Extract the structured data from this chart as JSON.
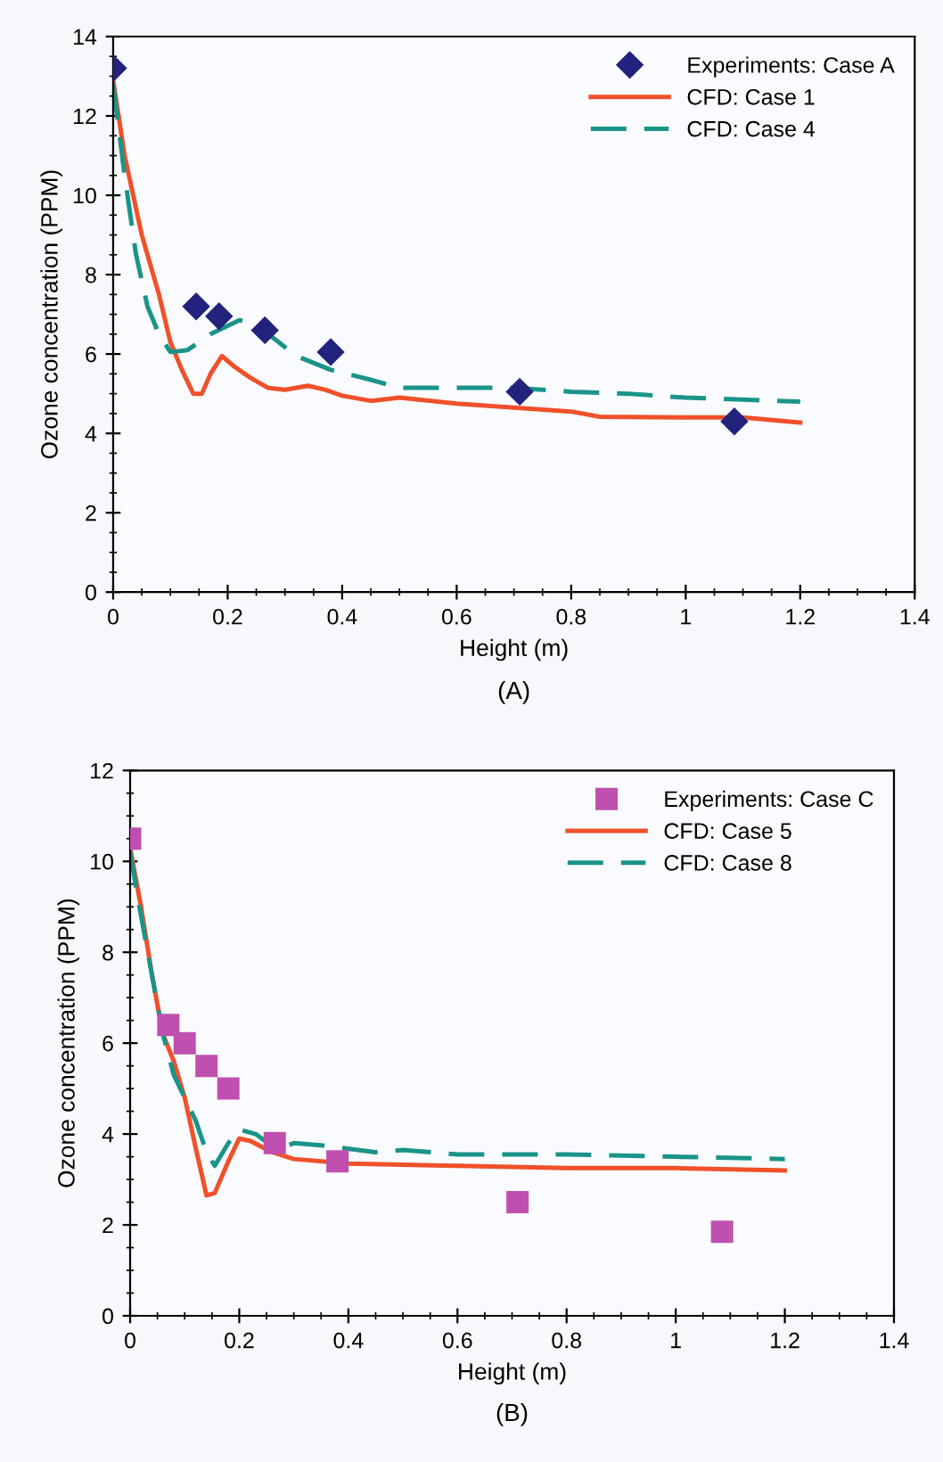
{
  "chart_data": [
    {
      "type": "line",
      "xlabel": "Height (m)",
      "ylabel": "Ozone concentration (PPM)",
      "annotations": [
        "(A)"
      ],
      "xlim": [
        0,
        1.4
      ],
      "xticks": [
        0,
        0.2,
        0.4,
        0.6,
        0.8,
        1,
        1.2,
        1.4
      ],
      "ylim": [
        0,
        14
      ],
      "yticks": [
        0,
        2,
        4,
        6,
        8,
        10,
        12,
        14
      ],
      "grid": false,
      "legend": "top right",
      "series": [
        {
          "name": "Experiments: Case A",
          "type": "scatter",
          "marker": "diamond",
          "color": "#23237e",
          "x": [
            0,
            0.145,
            0.185,
            0.265,
            0.38,
            0.71,
            1.085
          ],
          "values": [
            13.2,
            7.2,
            6.95,
            6.6,
            6.05,
            5.05,
            4.3
          ]
        },
        {
          "name": "CFD: Case 1",
          "line_style": "solid",
          "color": "#f0502a",
          "x": [
            0,
            0.02,
            0.05,
            0.08,
            0.1,
            0.12,
            0.14,
            0.155,
            0.17,
            0.19,
            0.21,
            0.24,
            0.27,
            0.3,
            0.34,
            0.37,
            0.4,
            0.45,
            0.5,
            0.6,
            0.7,
            0.8,
            0.85,
            1.0,
            1.1,
            1.2
          ],
          "values": [
            12.9,
            11,
            9,
            7.5,
            6.3,
            5.6,
            5.0,
            5.0,
            5.5,
            5.95,
            5.7,
            5.4,
            5.15,
            5.1,
            5.2,
            5.1,
            4.95,
            4.82,
            4.9,
            4.75,
            4.65,
            4.55,
            4.42,
            4.4,
            4.4,
            4.27
          ]
        },
        {
          "name": "CFD: Case 4",
          "line_style": "dashed",
          "color": "#1a9488",
          "x": [
            0,
            0.02,
            0.04,
            0.06,
            0.08,
            0.1,
            0.13,
            0.17,
            0.22,
            0.25,
            0.28,
            0.32,
            0.38,
            0.45,
            0.5,
            0.6,
            0.7,
            0.8,
            0.9,
            1.0,
            1.1,
            1.2
          ],
          "values": [
            12.8,
            10.5,
            8.5,
            7.2,
            6.5,
            6.05,
            6.1,
            6.5,
            6.85,
            6.8,
            6.4,
            5.95,
            5.6,
            5.35,
            5.15,
            5.15,
            5.15,
            5.05,
            5.0,
            4.9,
            4.85,
            4.8
          ]
        }
      ]
    },
    {
      "type": "line",
      "xlabel": "Height (m)",
      "ylabel": "Ozone concentration (PPM)",
      "annotations": [
        "(B)"
      ],
      "xlim": [
        0,
        1.4
      ],
      "xticks": [
        0,
        0.2,
        0.4,
        0.6,
        0.8,
        1,
        1.2,
        1.4
      ],
      "ylim": [
        0,
        12
      ],
      "yticks": [
        0,
        2,
        4,
        6,
        8,
        10,
        12
      ],
      "grid": false,
      "legend": "top right",
      "series": [
        {
          "name": "Experiments: Case C",
          "type": "scatter",
          "marker": "square",
          "color": "#c050b0",
          "x": [
            0,
            0.07,
            0.1,
            0.14,
            0.18,
            0.265,
            0.38,
            0.71,
            1.085
          ],
          "values": [
            10.5,
            6.4,
            6.0,
            5.5,
            5.0,
            3.8,
            3.4,
            2.5,
            1.85
          ]
        },
        {
          "name": "CFD: Case 5",
          "line_style": "solid",
          "color": "#f0502a",
          "x": [
            0,
            0.02,
            0.04,
            0.06,
            0.08,
            0.1,
            0.12,
            0.14,
            0.155,
            0.18,
            0.2,
            0.22,
            0.26,
            0.3,
            0.4,
            0.6,
            0.8,
            1.0,
            1.2
          ],
          "values": [
            10.3,
            9,
            7.5,
            6.2,
            5.6,
            4.8,
            3.7,
            2.65,
            2.7,
            3.4,
            3.9,
            3.85,
            3.6,
            3.45,
            3.35,
            3.3,
            3.25,
            3.25,
            3.2
          ]
        },
        {
          "name": "CFD: Case 8",
          "line_style": "dashed",
          "color": "#1a9488",
          "x": [
            0,
            0.02,
            0.04,
            0.06,
            0.08,
            0.1,
            0.12,
            0.14,
            0.155,
            0.18,
            0.2,
            0.23,
            0.27,
            0.3,
            0.35,
            0.45,
            0.5,
            0.6,
            0.8,
            1.0,
            1.2
          ],
          "values": [
            10.2,
            8.8,
            7.5,
            6.2,
            5.3,
            4.8,
            4.3,
            3.6,
            3.3,
            3.8,
            4.1,
            4.0,
            3.65,
            3.8,
            3.75,
            3.6,
            3.65,
            3.55,
            3.55,
            3.5,
            3.45
          ]
        }
      ]
    }
  ]
}
